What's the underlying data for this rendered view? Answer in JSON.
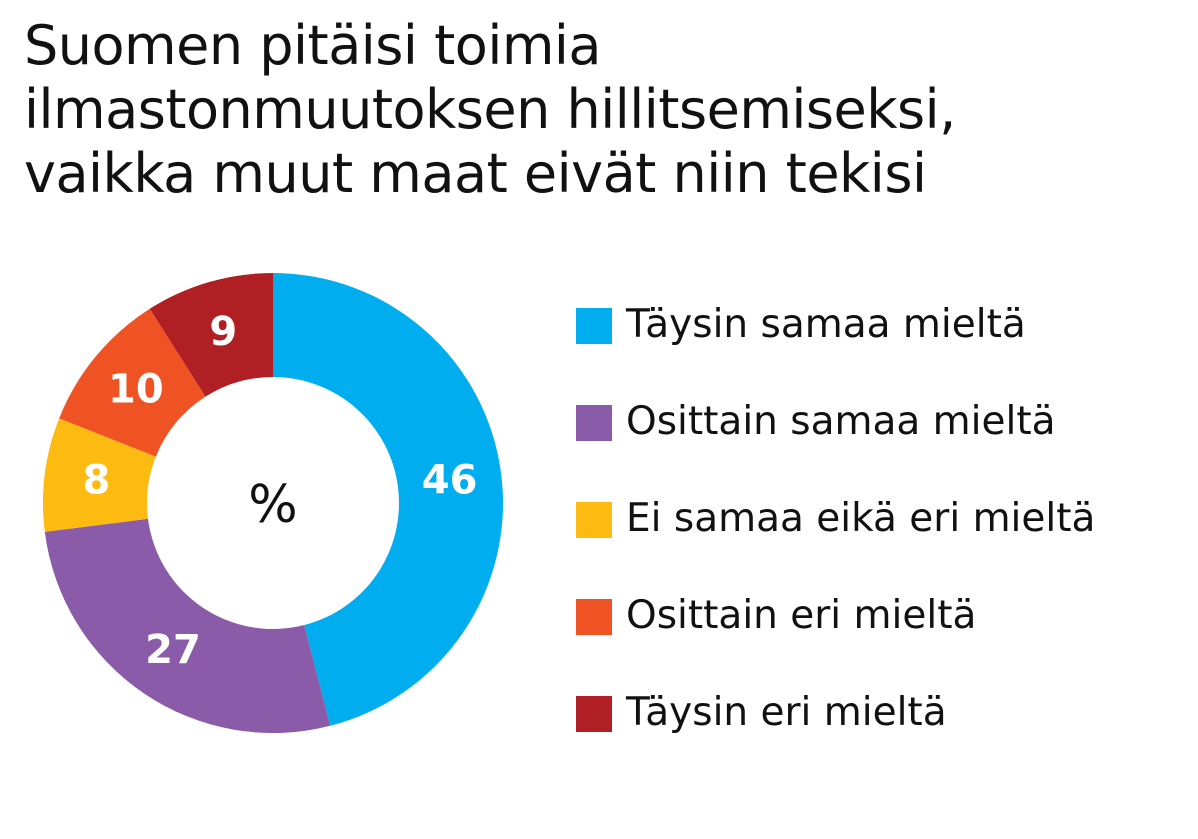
{
  "chart_data": {
    "type": "pie",
    "variant": "donut",
    "title_lines": [
      "Suomen pitäisi toimia",
      "ilmastonmuutoksen hillitsemiseksi,",
      "vaikka muut maat eivät niin tekisi"
    ],
    "center_label": "%",
    "categories": [
      "Täysin samaa mieltä",
      "Osittain samaa mieltä",
      "Ei samaa eikä eri mieltä",
      "Osittain eri mieltä",
      "Täysin eri mieltä"
    ],
    "values": [
      46,
      27,
      8,
      10,
      9
    ],
    "colors": [
      "#00AEEF",
      "#8A5BA8",
      "#FDBB11",
      "#F05323",
      "#B01F24"
    ],
    "start": "12 o'clock, clockwise",
    "legend_position": "right"
  }
}
